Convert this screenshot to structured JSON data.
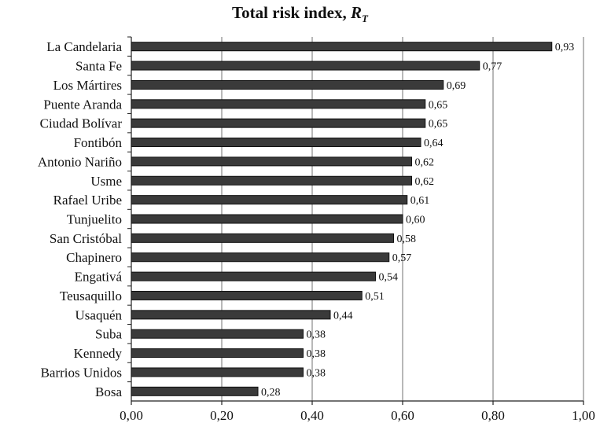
{
  "chart_data": {
    "type": "bar",
    "orientation": "horizontal",
    "title": "Total risk index, ",
    "title_var": "R",
    "title_sub": "T",
    "categories": [
      "La Candelaria",
      "Santa Fe",
      "Los Mártires",
      "Puente Aranda",
      "Ciudad Bolívar",
      "Fontibón",
      "Antonio Nariño",
      "Usme",
      "Rafael Uribe",
      "Tunjuelito",
      "San Cristóbal",
      "Chapinero",
      "Engativá",
      "Teusaquillo",
      "Usaquén",
      "Suba",
      "Kennedy",
      "Barrios Unidos",
      "Bosa"
    ],
    "values": [
      0.93,
      0.77,
      0.69,
      0.65,
      0.65,
      0.64,
      0.62,
      0.62,
      0.61,
      0.6,
      0.58,
      0.57,
      0.54,
      0.51,
      0.44,
      0.38,
      0.38,
      0.38,
      0.28
    ],
    "value_labels": [
      "0,93",
      "0,77",
      "0,69",
      "0,65",
      "0,65",
      "0,64",
      "0,62",
      "0,62",
      "0,61",
      "0,60",
      "0,58",
      "0,57",
      "0,54",
      "0,51",
      "0,44",
      "0,38",
      "0,38",
      "0,38",
      "0,28"
    ],
    "xlim": [
      0,
      1.0
    ],
    "xticks": [
      0,
      0.2,
      0.4,
      0.6,
      0.8,
      1.0
    ],
    "xtick_labels": [
      "0,00",
      "0,20",
      "0,40",
      "0,60",
      "0,80",
      "1,00"
    ],
    "xlabel": "",
    "ylabel": "",
    "grid": "vertical",
    "bar_color": "#3a3a3a",
    "bar_edge_color": "#111111",
    "grid_color": "#888888"
  }
}
